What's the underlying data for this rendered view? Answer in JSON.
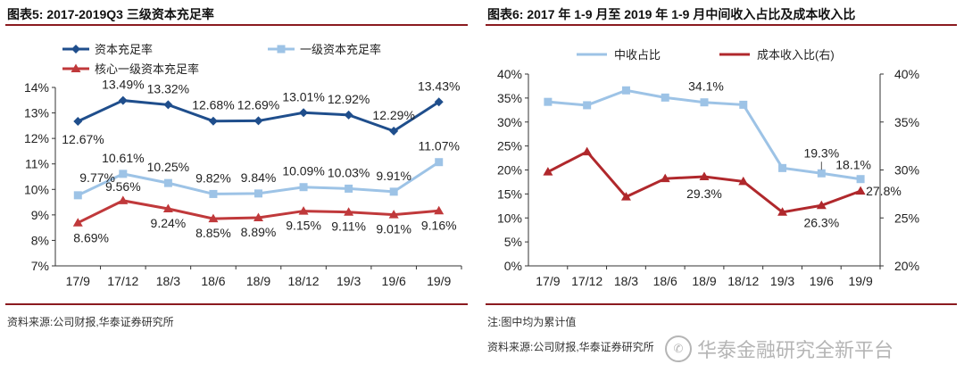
{
  "left": {
    "title": "图表5:  2017-2019Q3 三级资本充足率",
    "source": "资料来源:公司财报,华泰证券研究所"
  },
  "right": {
    "title": "图表6:  2017 年 1-9 月至 2019 年 1-9 月中间收入占比及成本收入比",
    "note": "注:图中均为累计值",
    "source": "资料来源:公司财报,华泰证券研究所"
  },
  "watermark": {
    "text": "华泰金融研究全新平台",
    "logo_icon": "wechat-icon"
  },
  "chart_data": [
    {
      "type": "line",
      "title": "2017-2019Q3 三级资本充足率",
      "categories": [
        "17/9",
        "17/12",
        "18/3",
        "18/6",
        "18/9",
        "18/12",
        "19/3",
        "19/6",
        "19/9"
      ],
      "ylim": [
        7,
        14
      ],
      "yticks": [
        "7%",
        "8%",
        "9%",
        "10%",
        "11%",
        "12%",
        "13%",
        "14%"
      ],
      "series": [
        {
          "name": "资本充足率",
          "color": "#1f4e8c",
          "marker": "diamond",
          "values": [
            12.67,
            13.49,
            13.32,
            12.68,
            12.69,
            13.01,
            12.92,
            12.29,
            13.43
          ],
          "labels": [
            "12.67%",
            "13.49%",
            "13.32%",
            "12.68%",
            "12.69%",
            "13.01%",
            "12.92%",
            "12.29%",
            "13.43%"
          ]
        },
        {
          "name": "一级资本充足率",
          "color": "#9dc3e6",
          "marker": "square",
          "values": [
            9.77,
            10.61,
            10.25,
            9.82,
            9.84,
            10.09,
            10.03,
            9.91,
            11.07
          ],
          "labels": [
            "9.77%",
            "10.61%",
            "10.25%",
            "9.82%",
            "9.84%",
            "10.09%",
            "10.03%",
            "9.91%",
            "11.07%"
          ]
        },
        {
          "name": "核心一级资本充足率",
          "color": "#c0393b",
          "marker": "triangle",
          "values": [
            8.69,
            9.56,
            9.24,
            8.85,
            8.89,
            9.15,
            9.11,
            9.01,
            9.16
          ],
          "labels": [
            "8.69%",
            "9.56%",
            "9.24%",
            "8.85%",
            "8.89%",
            "9.15%",
            "9.11%",
            "9.01%",
            "9.16%"
          ]
        }
      ]
    },
    {
      "type": "line",
      "title": "2017 年 1-9 月至 2019 年 1-9 月中间收入占比及成本收入比",
      "categories": [
        "17/9",
        "17/12",
        "18/3",
        "18/6",
        "18/9",
        "18/12",
        "19/3",
        "19/6",
        "19/9"
      ],
      "ylim_left": [
        0,
        40
      ],
      "yticks_left": [
        "0%",
        "5%",
        "10%",
        "15%",
        "20%",
        "25%",
        "30%",
        "35%",
        "40%"
      ],
      "ylim_right": [
        20,
        40
      ],
      "yticks_right": [
        "20%",
        "25%",
        "30%",
        "35%",
        "40%"
      ],
      "series": [
        {
          "name": "中收占比",
          "axis": "left",
          "color": "#9dc3e6",
          "marker": "square",
          "values": [
            34.2,
            33.5,
            36.6,
            35.1,
            34.1,
            33.6,
            20.4,
            19.3,
            18.1
          ],
          "labels": {
            "4": "34.1%",
            "7": "19.3%",
            "8": "18.1%"
          }
        },
        {
          "name": "成本收入比(右)",
          "axis": "right",
          "color": "#b0282c",
          "marker": "triangle",
          "values": [
            29.8,
            31.9,
            27.2,
            29.1,
            29.3,
            28.8,
            25.6,
            26.3,
            27.8
          ],
          "labels": {
            "4": "29.3%",
            "7": "26.3%",
            "8": "27.8%"
          }
        }
      ]
    }
  ]
}
